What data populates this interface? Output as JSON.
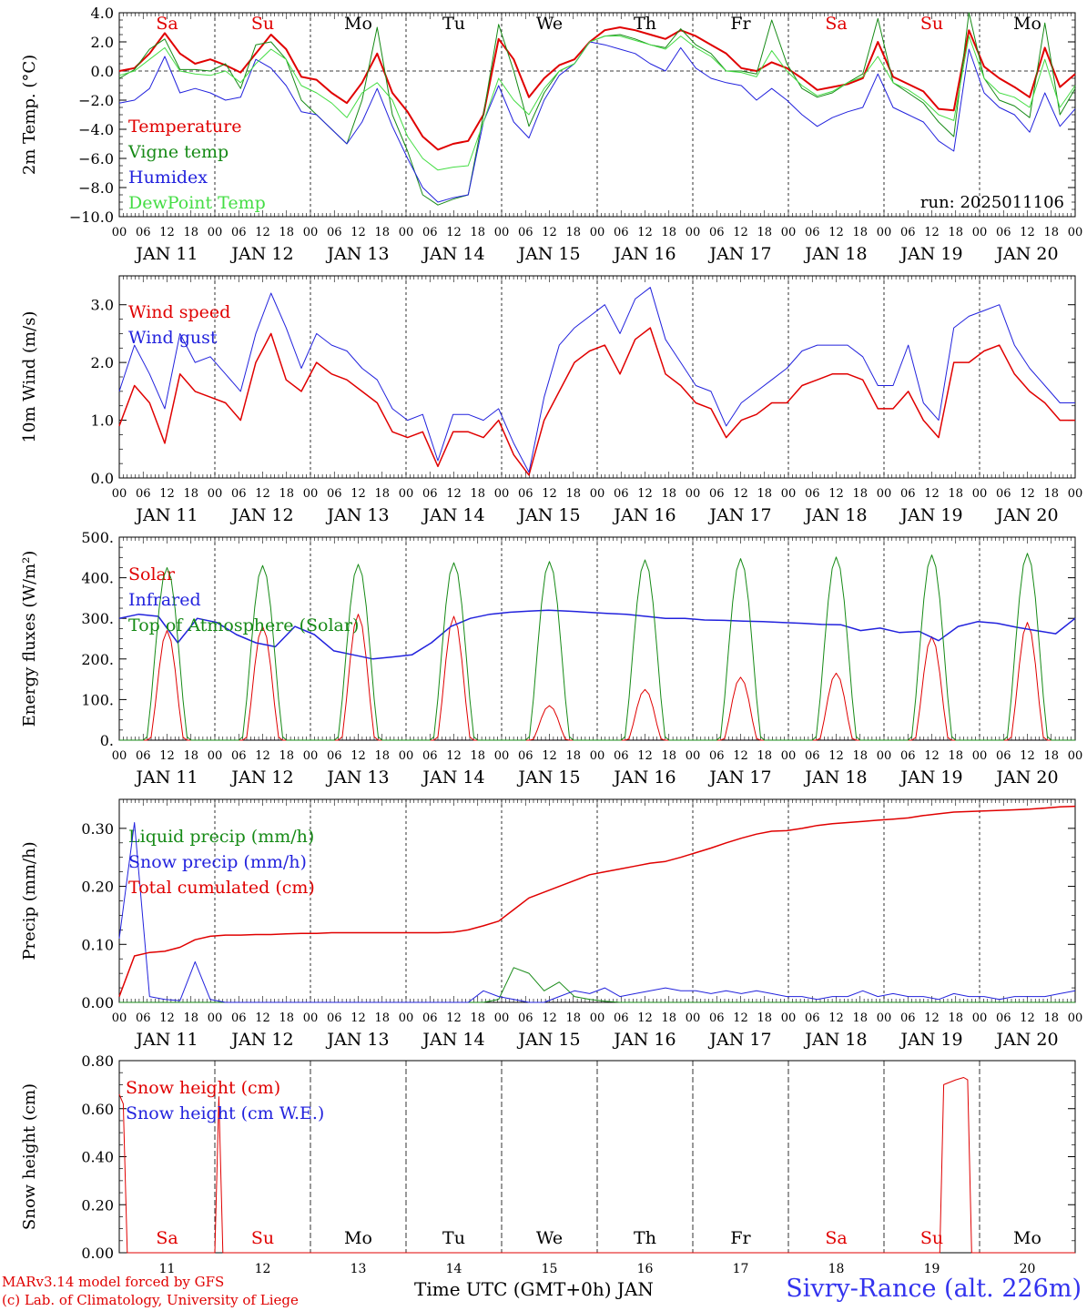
{
  "days": [
    "JAN 11",
    "JAN 12",
    "JAN 13",
    "JAN 14",
    "JAN 15",
    "JAN 16",
    "JAN 17",
    "JAN 18",
    "JAN 19",
    "JAN 20"
  ],
  "day_numbers": [
    "11",
    "12",
    "13",
    "14",
    "15",
    "16",
    "17",
    "18",
    "19",
    "20"
  ],
  "weekdays": [
    "Sa",
    "Su",
    "Mo",
    "Tu",
    "We",
    "Th",
    "Fr",
    "Sa",
    "Su",
    "Mo"
  ],
  "weekday_colors": [
    "#e00000",
    "#e00000",
    "#000000",
    "#000000",
    "#000000",
    "#000000",
    "#000000",
    "#e00000",
    "#e00000",
    "#000000"
  ],
  "hour_ticks": [
    "00",
    "06",
    "12",
    "18"
  ],
  "footer": {
    "model": "MARv3.14 model forced by GFS",
    "credit": "(c) Lab. of Climatology, University of Liege",
    "xlabel": "Time UTC (GMT+0h) JAN",
    "station": "Sivry-Rance (alt. 226m)"
  },
  "chart_data": [
    {
      "type": "line",
      "ylabel": "2m Temp. (°C)",
      "ylim": [
        -10,
        4
      ],
      "yticks": [
        4,
        2,
        0,
        -2,
        -4,
        -6,
        -8,
        -10
      ],
      "ytick_labels": [
        "4.0",
        "2.0",
        "0.0",
        "−2.0",
        "−4.0",
        "−6.0",
        "−8.0",
        "−10.0"
      ],
      "zero_line": true,
      "annotation": "run: 2025011106",
      "x_hours_step": 6,
      "series": [
        {
          "name": "Temperature",
          "color": "#e00000",
          "width": 2,
          "values": [
            0,
            0.2,
            1.2,
            2.6,
            1.2,
            0.5,
            0.8,
            0.4,
            -0.1,
            1.2,
            2.5,
            1.5,
            -0.4,
            -0.6,
            -1.5,
            -2.2,
            -0.8,
            1.2,
            -1.5,
            -2.8,
            -4.5,
            -5.4,
            -5.0,
            -4.8,
            -3.0,
            2.2,
            0.8,
            -1.8,
            -0.5,
            0.4,
            0.8,
            2.0,
            2.8,
            3.0,
            2.8,
            2.5,
            2.2,
            2.8,
            2.4,
            1.8,
            1.2,
            0.2,
            0.0,
            0.6,
            0.2,
            -0.5,
            -1.3,
            -1.1,
            -0.9,
            -0.5,
            2.0,
            -0.4,
            -0.9,
            -1.4,
            -2.6,
            -2.7,
            2.8,
            0.3,
            -0.5,
            -1.1,
            -1.8,
            1.6,
            -1.1,
            -0.2
          ]
        },
        {
          "name": "Vigne temp",
          "color": "#168a16",
          "width": 1,
          "values": [
            -0.5,
            0.1,
            1.5,
            2.2,
            0.1,
            0.1,
            0.0,
            0.5,
            -1.2,
            1.8,
            2.0,
            0.8,
            -2.0,
            -3.0,
            -4.0,
            -5.0,
            -2.0,
            3.0,
            -3.0,
            -5.5,
            -8.5,
            -9.2,
            -8.8,
            -8.5,
            -3.0,
            3.2,
            0.0,
            -3.8,
            -1.5,
            0.0,
            0.5,
            2.0,
            2.4,
            2.5,
            2.2,
            1.8,
            1.6,
            2.9,
            1.8,
            1.2,
            0.0,
            0.0,
            -0.2,
            3.5,
            0.5,
            -1.2,
            -1.8,
            -1.5,
            -0.8,
            -0.2,
            3.6,
            -0.8,
            -1.5,
            -2.2,
            -3.5,
            -4.5,
            4.0,
            -0.5,
            -2.0,
            -2.4,
            -3.2,
            3.3,
            -3.0,
            -1.2
          ]
        },
        {
          "name": "Humidex",
          "color": "#2222dd",
          "width": 1,
          "values": [
            -2.2,
            -2.0,
            -1.2,
            1.0,
            -1.5,
            -1.2,
            -1.5,
            -2.0,
            -1.8,
            0.8,
            0.2,
            -1.0,
            -2.8,
            -3.0,
            -4.0,
            -5.0,
            -3.5,
            -1.2,
            -3.8,
            -6.0,
            -8.0,
            -9.0,
            -8.7,
            -8.5,
            -3.5,
            -1.0,
            -3.5,
            -4.6,
            -2.0,
            -0.3,
            0.5,
            2.0,
            1.8,
            1.5,
            1.2,
            0.5,
            0.0,
            1.6,
            0.2,
            -0.5,
            -0.8,
            -1.0,
            -2.0,
            -1.2,
            -2.0,
            -3.0,
            -3.8,
            -3.2,
            -2.8,
            -2.5,
            -0.2,
            -2.5,
            -3.0,
            -3.5,
            -4.8,
            -5.5,
            1.5,
            -1.5,
            -2.5,
            -3.0,
            -4.2,
            -1.5,
            -3.8,
            -2.6
          ]
        },
        {
          "name": "DewPoint Temp",
          "color": "#44dd44",
          "width": 1,
          "values": [
            -0.3,
            0.0,
            0.8,
            1.6,
            0.0,
            -0.2,
            -0.3,
            0.0,
            -0.8,
            0.5,
            1.5,
            0.8,
            -1.0,
            -1.5,
            -2.2,
            -3.2,
            -1.5,
            -0.8,
            -2.0,
            -4.5,
            -6.0,
            -6.8,
            -6.6,
            -6.5,
            -3.5,
            -0.5,
            -2.0,
            -3.0,
            -1.2,
            0.0,
            0.5,
            2.0,
            2.4,
            2.4,
            2.1,
            1.8,
            1.5,
            2.4,
            1.6,
            1.0,
            0.0,
            -0.1,
            -0.4,
            1.4,
            0.0,
            -1.0,
            -1.7,
            -1.4,
            -0.8,
            -0.4,
            1.0,
            -0.8,
            -1.3,
            -2.0,
            -3.0,
            -3.4,
            2.4,
            -0.5,
            -1.5,
            -1.8,
            -2.5,
            0.8,
            -2.5,
            -1.0
          ]
        }
      ]
    },
    {
      "type": "line",
      "ylabel": "10m Wind (m/s)",
      "ylim": [
        0,
        3.5
      ],
      "yticks": [
        0,
        1,
        2,
        3
      ],
      "ytick_labels": [
        "0.0",
        "1.0",
        "2.0",
        "3.0"
      ],
      "x_hours_step": 6,
      "series": [
        {
          "name": "Wind speed",
          "color": "#e00000",
          "width": 1.5,
          "values": [
            0.9,
            1.6,
            1.3,
            0.6,
            1.8,
            1.5,
            1.4,
            1.3,
            1.0,
            2.0,
            2.5,
            1.7,
            1.5,
            2.0,
            1.8,
            1.7,
            1.5,
            1.3,
            0.8,
            0.7,
            0.8,
            0.2,
            0.8,
            0.8,
            0.7,
            1.0,
            0.4,
            0.05,
            1.0,
            1.5,
            2.0,
            2.2,
            2.3,
            1.8,
            2.4,
            2.6,
            1.8,
            1.6,
            1.3,
            1.2,
            0.7,
            1.0,
            1.1,
            1.3,
            1.3,
            1.6,
            1.7,
            1.8,
            1.8,
            1.7,
            1.2,
            1.2,
            1.5,
            1.0,
            0.7,
            2.0,
            2.0,
            2.2,
            2.3,
            1.8,
            1.5,
            1.3,
            1.0,
            1.0
          ]
        },
        {
          "name": "Wind gust",
          "color": "#2222dd",
          "width": 1,
          "values": [
            1.5,
            2.3,
            1.8,
            1.2,
            2.5,
            2.0,
            2.1,
            1.8,
            1.5,
            2.5,
            3.2,
            2.6,
            1.9,
            2.5,
            2.3,
            2.2,
            1.9,
            1.7,
            1.2,
            1.0,
            1.1,
            0.3,
            1.1,
            1.1,
            1.0,
            1.2,
            0.6,
            0.1,
            1.4,
            2.3,
            2.6,
            2.8,
            3.0,
            2.5,
            3.1,
            3.3,
            2.4,
            2.0,
            1.6,
            1.5,
            0.9,
            1.3,
            1.5,
            1.7,
            1.9,
            2.2,
            2.3,
            2.3,
            2.3,
            2.1,
            1.6,
            1.6,
            2.3,
            1.3,
            1.0,
            2.6,
            2.8,
            2.9,
            3.0,
            2.3,
            1.9,
            1.6,
            1.3,
            1.3
          ]
        }
      ]
    },
    {
      "type": "line",
      "ylabel": "Energy fluxes (W/m²)",
      "ylim": [
        0,
        500
      ],
      "yticks": [
        0,
        100,
        200,
        300,
        400,
        500
      ],
      "ytick_labels": [
        "0.",
        "100.",
        "200.",
        "300.",
        "400.",
        "500."
      ],
      "x_hours_step": 3,
      "series": [
        {
          "name": "Solar",
          "color": "#e00000",
          "width": 1,
          "peaks": [
            270,
            280,
            310,
            305,
            85,
            125,
            155,
            165,
            255,
            290
          ]
        },
        {
          "name": "Infrared",
          "color": "#2222dd",
          "width": 1.5,
          "values": [
            300,
            310,
            305,
            240,
            300,
            290,
            260,
            240,
            230,
            280,
            260,
            220,
            210,
            200,
            205,
            210,
            240,
            280,
            300,
            310,
            315,
            318,
            320,
            318,
            315,
            312,
            310,
            305,
            300,
            300,
            296,
            295,
            293,
            292,
            290,
            288,
            285,
            284,
            270,
            276,
            265,
            268,
            245,
            280,
            292,
            288,
            278,
            270,
            262,
            300
          ]
        },
        {
          "name": "Top of Atmosphere (Solar)",
          "color": "#168a16",
          "width": 1,
          "peaks": [
            425,
            430,
            433,
            437,
            440,
            444,
            447,
            451,
            456,
            460
          ]
        }
      ]
    },
    {
      "type": "line",
      "ylabel": "Precip (mm/h)",
      "ylim": [
        0,
        0.35
      ],
      "yticks": [
        0,
        0.1,
        0.2,
        0.3
      ],
      "ytick_labels": [
        "0.00",
        "0.10",
        "0.20",
        "0.30"
      ],
      "x_hours_step": 6,
      "series": [
        {
          "name": "Liquid precip (mm/h)",
          "color": "#168a16",
          "width": 1,
          "values": [
            0,
            0,
            0,
            0,
            0,
            0,
            0,
            0,
            0,
            0,
            0,
            0,
            0,
            0,
            0,
            0,
            0,
            0,
            0,
            0,
            0,
            0,
            0,
            0,
            0,
            0.005,
            0.06,
            0.05,
            0.02,
            0.035,
            0.01,
            0.005,
            0.002,
            0,
            0,
            0,
            0,
            0,
            0,
            0,
            0,
            0,
            0,
            0,
            0,
            0,
            0,
            0,
            0,
            0,
            0,
            0,
            0,
            0,
            0,
            0,
            0,
            0,
            0,
            0,
            0,
            0,
            0,
            0
          ]
        },
        {
          "name": "Snow precip (mm/h)",
          "color": "#2222dd",
          "width": 1,
          "values": [
            0.11,
            0.31,
            0.01,
            0.005,
            0.003,
            0.07,
            0.005,
            0,
            0,
            0,
            0,
            0,
            0,
            0,
            0,
            0,
            0,
            0,
            0,
            0,
            0,
            0,
            0,
            0,
            0.02,
            0.01,
            0.005,
            0,
            0,
            0.01,
            0.02,
            0.015,
            0.025,
            0.01,
            0.015,
            0.02,
            0.025,
            0.02,
            0.02,
            0.015,
            0.02,
            0.015,
            0.02,
            0.015,
            0.01,
            0.01,
            0.005,
            0.01,
            0.01,
            0.02,
            0.01,
            0.015,
            0.01,
            0.01,
            0.005,
            0.015,
            0.01,
            0.01,
            0.005,
            0.01,
            0.01,
            0.01,
            0.015,
            0.02
          ]
        },
        {
          "name": "Total cumulated (cm)",
          "color": "#e00000",
          "width": 1.5,
          "values": [
            0.01,
            0.08,
            0.086,
            0.088,
            0.095,
            0.108,
            0.114,
            0.116,
            0.116,
            0.117,
            0.117,
            0.118,
            0.119,
            0.119,
            0.12,
            0.12,
            0.12,
            0.12,
            0.12,
            0.12,
            0.12,
            0.12,
            0.121,
            0.125,
            0.132,
            0.14,
            0.16,
            0.18,
            0.19,
            0.2,
            0.21,
            0.22,
            0.225,
            0.23,
            0.235,
            0.24,
            0.243,
            0.25,
            0.258,
            0.266,
            0.275,
            0.283,
            0.29,
            0.295,
            0.296,
            0.3,
            0.305,
            0.308,
            0.31,
            0.312,
            0.314,
            0.316,
            0.318,
            0.322,
            0.325,
            0.328,
            0.329,
            0.33,
            0.331,
            0.332,
            0.333,
            0.335,
            0.337,
            0.338
          ]
        }
      ]
    },
    {
      "type": "line",
      "ylabel": "Snow height (cm)",
      "ylim": [
        0,
        0.8
      ],
      "yticks": [
        0,
        0.2,
        0.4,
        0.6,
        0.8
      ],
      "ytick_labels": [
        "0.00",
        "0.20",
        "0.40",
        "0.60",
        "0.80"
      ],
      "series": [
        {
          "name": "Snow height (cm)",
          "color": "#e00000",
          "width": 1,
          "points": [
            [
              0,
              0.66
            ],
            [
              1,
              0.62
            ],
            [
              2,
              0
            ],
            [
              24,
              0
            ],
            [
              25,
              0.65
            ],
            [
              26,
              0
            ],
            [
              206,
              0
            ],
            [
              207,
              0.7
            ],
            [
              210,
              0.72
            ],
            [
              212,
              0.73
            ],
            [
              213,
              0.72
            ],
            [
              214,
              0
            ],
            [
              240,
              0
            ]
          ]
        },
        {
          "name": "Snow height (cm W.E.)",
          "color": "#2222dd",
          "width": 1,
          "points": []
        }
      ]
    }
  ]
}
